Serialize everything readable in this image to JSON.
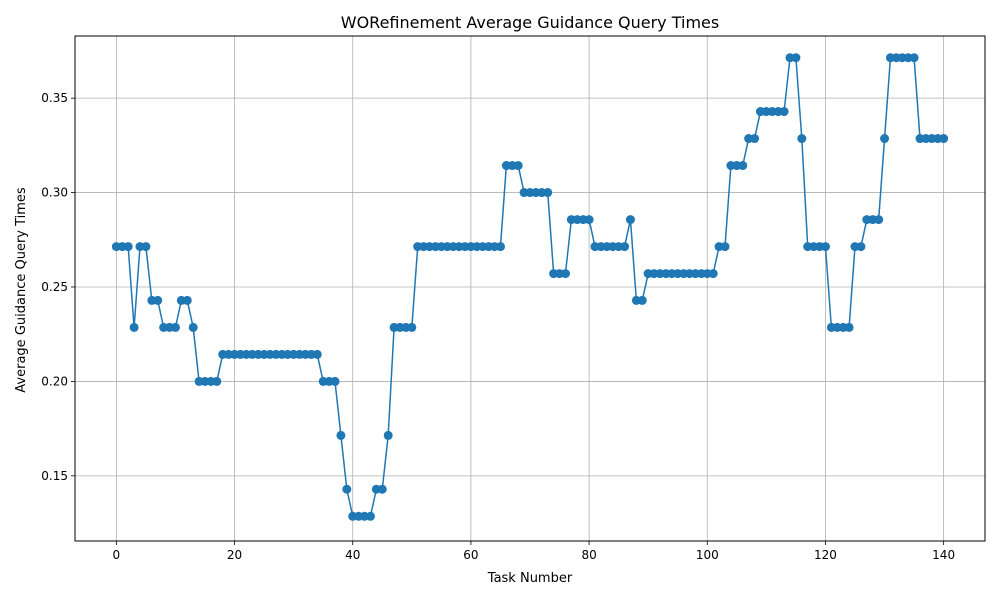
{
  "chart_data": {
    "type": "line",
    "title": "WORefinement Average Guidance Query Times",
    "xlabel": "Task Number",
    "ylabel": "Average Guidance Query Times",
    "xlim": [
      -7,
      147
    ],
    "ylim": [
      0.1155,
      0.3829
    ],
    "xticks": [
      0,
      20,
      40,
      60,
      80,
      100,
      120,
      140
    ],
    "yticks": [
      0.15,
      0.2,
      0.25,
      0.3,
      0.35
    ],
    "ytick_labels": [
      "0.15",
      "0.20",
      "0.25",
      "0.30",
      "0.35"
    ],
    "grid": true,
    "marker": "circle",
    "series": [
      {
        "color": "#1f77b4",
        "x": [
          0,
          1,
          2,
          3,
          4,
          5,
          6,
          7,
          8,
          9,
          10,
          11,
          12,
          13,
          14,
          15,
          16,
          17,
          18,
          19,
          20,
          21,
          22,
          23,
          24,
          25,
          26,
          27,
          28,
          29,
          30,
          31,
          32,
          33,
          34,
          35,
          36,
          37,
          38,
          39,
          40,
          41,
          42,
          43,
          44,
          45,
          46,
          47,
          48,
          49,
          50,
          51,
          52,
          53,
          54,
          55,
          56,
          57,
          58,
          59,
          60,
          61,
          62,
          63,
          64,
          65,
          66,
          67,
          68,
          69,
          70,
          71,
          72,
          73,
          74,
          75,
          76,
          77,
          78,
          79,
          80,
          81,
          82,
          83,
          84,
          85,
          86,
          87,
          88,
          89,
          90,
          91,
          92,
          93,
          94,
          95,
          96,
          97,
          98,
          99,
          100,
          101,
          102,
          103,
          104,
          105,
          106,
          107,
          108,
          109,
          110,
          111,
          112,
          113,
          114,
          115,
          116,
          117,
          118,
          119,
          120,
          121,
          122,
          123,
          124,
          125,
          126,
          127,
          128,
          129,
          130,
          131,
          132,
          133,
          134,
          135,
          136,
          137,
          138,
          139,
          140
        ],
        "y": [
          0.2714,
          0.2714,
          0.2714,
          0.2286,
          0.2714,
          0.2714,
          0.2429,
          0.2429,
          0.2286,
          0.2286,
          0.2286,
          0.2429,
          0.2429,
          0.2286,
          0.2,
          0.2,
          0.2,
          0.2,
          0.2143,
          0.2143,
          0.2143,
          0.2143,
          0.2143,
          0.2143,
          0.2143,
          0.2143,
          0.2143,
          0.2143,
          0.2143,
          0.2143,
          0.2143,
          0.2143,
          0.2143,
          0.2143,
          0.2143,
          0.2,
          0.2,
          0.2,
          0.1714,
          0.1429,
          0.1286,
          0.1286,
          0.1286,
          0.1286,
          0.1429,
          0.1429,
          0.1714,
          0.2286,
          0.2286,
          0.2286,
          0.2286,
          0.2714,
          0.2714,
          0.2714,
          0.2714,
          0.2714,
          0.2714,
          0.2714,
          0.2714,
          0.2714,
          0.2714,
          0.2714,
          0.2714,
          0.2714,
          0.2714,
          0.2714,
          0.3143,
          0.3143,
          0.3143,
          0.3,
          0.3,
          0.3,
          0.3,
          0.3,
          0.2571,
          0.2571,
          0.2571,
          0.2857,
          0.2857,
          0.2857,
          0.2857,
          0.2714,
          0.2714,
          0.2714,
          0.2714,
          0.2714,
          0.2714,
          0.2857,
          0.2429,
          0.2429,
          0.2571,
          0.2571,
          0.2571,
          0.2571,
          0.2571,
          0.2571,
          0.2571,
          0.2571,
          0.2571,
          0.2571,
          0.2571,
          0.2571,
          0.2714,
          0.2714,
          0.3143,
          0.3143,
          0.3143,
          0.3286,
          0.3286,
          0.3429,
          0.3429,
          0.3429,
          0.3429,
          0.3429,
          0.3714,
          0.3714,
          0.3286,
          0.2714,
          0.2714,
          0.2714,
          0.2714,
          0.2286,
          0.2286,
          0.2286,
          0.2286,
          0.2714,
          0.2714,
          0.2857,
          0.2857,
          0.2857,
          0.3286,
          0.3714,
          0.3714,
          0.3714,
          0.3714,
          0.3714,
          0.3286,
          0.3286,
          0.3286,
          0.3286,
          0.3286
        ]
      }
    ]
  }
}
